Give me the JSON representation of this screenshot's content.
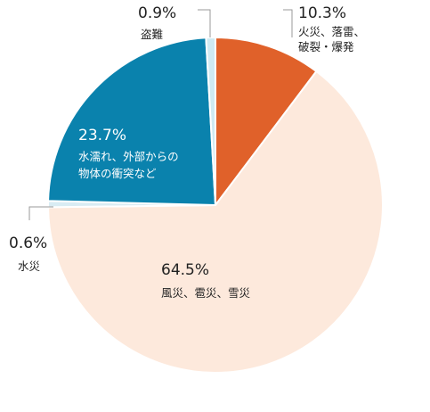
{
  "chart_data": {
    "type": "pie",
    "start_angle_deg": 0,
    "direction": "clockwise",
    "slices": [
      {
        "value": 10.3,
        "percent_label": "10.3%",
        "label_lines": [
          "火災、落雷、",
          "破裂・爆発"
        ],
        "color": "#e0612a"
      },
      {
        "value": 64.5,
        "percent_label": "64.5%",
        "label_lines": [
          "風災、雹災、雪災"
        ],
        "color": "#fde9dc"
      },
      {
        "value": 0.6,
        "percent_label": "0.6%",
        "label_lines": [
          "水災"
        ],
        "color": "#d9ecf3"
      },
      {
        "value": 23.7,
        "percent_label": "23.7%",
        "label_lines": [
          "水濡れ、外部からの",
          "物体の衝突など"
        ],
        "color": "#0a82ad"
      },
      {
        "value": 0.9,
        "percent_label": "0.9%",
        "label_lines": [
          "盗難"
        ],
        "color": "#cfeaf2"
      }
    ]
  }
}
